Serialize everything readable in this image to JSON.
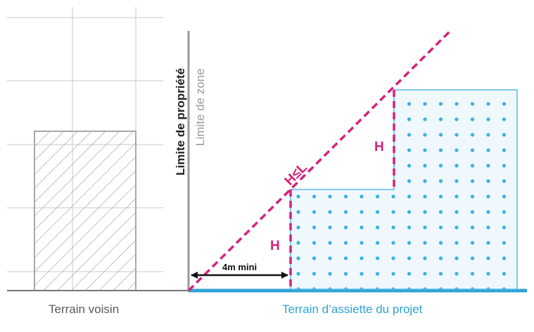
{
  "labels": {
    "terrain_voisin": "Terrain voisin",
    "terrain_projet": "Terrain d’assiette du projet",
    "limite_propriete": "Limite de propriété",
    "limite_zone": "Limite de zone",
    "h_le_l": "H≤L",
    "h_upper": "H",
    "h_lower": "H",
    "distance_min": "4m mini"
  },
  "colors": {
    "pink": "#d4237a",
    "blue": "#2ea3d6",
    "gray_line": "#9a9a9a",
    "hatch": "#a8a8a8",
    "grid": "#c8c8c8",
    "building_fill": "#eef8fd"
  }
}
